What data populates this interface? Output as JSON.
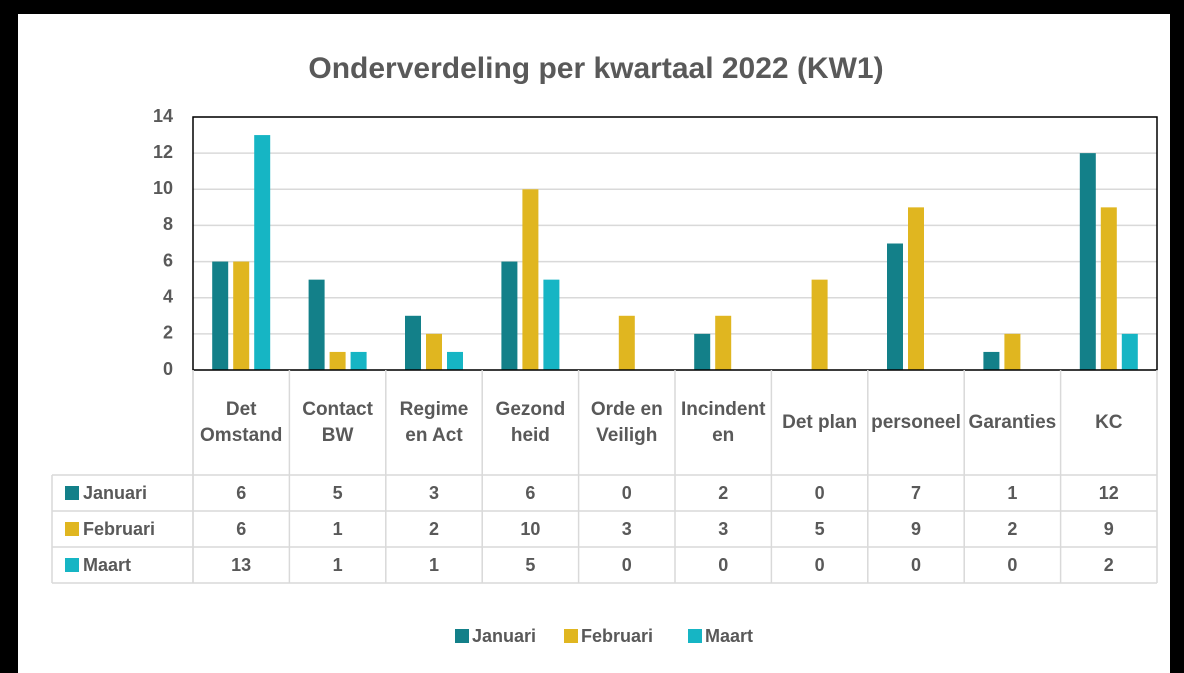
{
  "chart_data": {
    "type": "bar",
    "title": "Onderverdeling  per kwartaal 2022 (KW1)",
    "categories": [
      "Det Omstand",
      "Contact BW",
      "Regime en Act",
      "Gezond heid",
      "Orde en Veiligh",
      "Incindenten",
      "Det plan",
      "personeel",
      "Garanties",
      "KC"
    ],
    "series": [
      {
        "name": "Januari",
        "color": "#138089",
        "values": [
          6,
          5,
          3,
          6,
          0,
          2,
          0,
          7,
          1,
          12
        ]
      },
      {
        "name": "Februari",
        "color": "#e0b620",
        "values": [
          6,
          1,
          2,
          10,
          3,
          3,
          5,
          9,
          2,
          9
        ]
      },
      {
        "name": "Maart",
        "color": "#16b5c4",
        "values": [
          13,
          1,
          1,
          5,
          0,
          0,
          0,
          0,
          0,
          2
        ]
      }
    ],
    "ylim": [
      0,
      14
    ],
    "yticks": [
      0,
      2,
      4,
      6,
      8,
      10,
      12,
      14
    ],
    "grid": true,
    "legend": "bottom"
  }
}
